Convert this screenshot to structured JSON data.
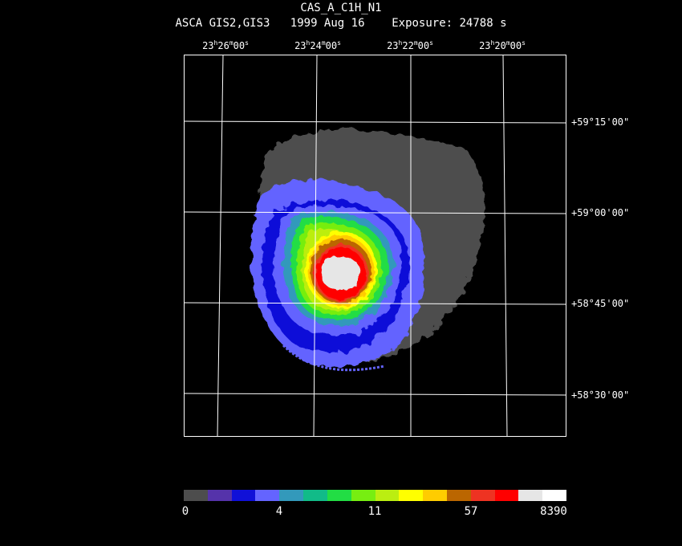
{
  "header": {
    "object": "CAS_A_C1H_N1",
    "instrument": "ASCA GIS2,GIS3",
    "date": "1999 Aug 16",
    "exposure": "Exposure: 24788 s"
  },
  "ra_labels": [
    {
      "h": "23",
      "m": "26",
      "s": "00"
    },
    {
      "h": "23",
      "m": "24",
      "s": "00"
    },
    {
      "h": "23",
      "m": "22",
      "s": "00"
    },
    {
      "h": "23",
      "m": "20",
      "s": "00"
    }
  ],
  "dec_labels": [
    "+59°15'00\"",
    "+59°00'00\"",
    "+58°45'00\"",
    "+58°30'00\""
  ],
  "colorbar": {
    "colors": [
      "#4d4d4d",
      "#5533aa",
      "#1010d8",
      "#6464ff",
      "#3399bb",
      "#11bb88",
      "#22dd44",
      "#77ee11",
      "#bbee11",
      "#ffff00",
      "#ffcc00",
      "#bb6600",
      "#ee3322",
      "#ff0000",
      "#e6e6e6",
      "#ffffff"
    ],
    "labels": [
      "0",
      "4",
      "11",
      "57",
      "8390"
    ]
  }
}
